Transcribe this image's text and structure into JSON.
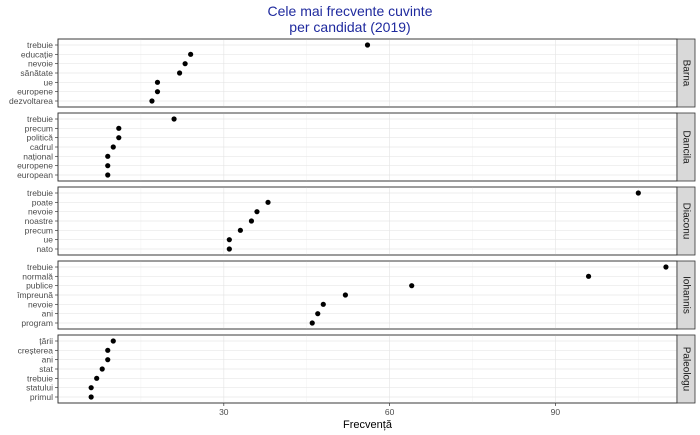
{
  "chart_data": {
    "type": "scatter",
    "title_lines": [
      "Cele mai frecvente cuvinte",
      "per candidat (2019)"
    ],
    "xlabel": "Frecvență",
    "ylabel": "",
    "xlim": [
      0,
      112
    ],
    "xticks": [
      30,
      60,
      90
    ],
    "xtick_labels": [
      "30",
      "60",
      "90"
    ],
    "grid": true,
    "facets": [
      {
        "name": "Barna",
        "words": [
          "trebuie",
          "educație",
          "nevoie",
          "sănătate",
          "ue",
          "europene",
          "dezvoltarea"
        ],
        "values": [
          56,
          24,
          23,
          22,
          18,
          18,
          17
        ]
      },
      {
        "name": "Dancila",
        "words": [
          "trebuie",
          "precum",
          "politică",
          "cadrul",
          "național",
          "europene",
          "european"
        ],
        "values": [
          21,
          11,
          11,
          10,
          9,
          9,
          9
        ]
      },
      {
        "name": "Diaconu",
        "words": [
          "trebuie",
          "poate",
          "nevoie",
          "noastre",
          "precum",
          "ue",
          "nato"
        ],
        "values": [
          105,
          38,
          36,
          35,
          33,
          31,
          31
        ]
      },
      {
        "name": "Iohannis",
        "words": [
          "trebuie",
          "normală",
          "publice",
          "împreună",
          "nevoie",
          "ani",
          "program"
        ],
        "values": [
          110,
          96,
          64,
          52,
          48,
          47,
          46
        ]
      },
      {
        "name": "Paleologu",
        "words": [
          "țării",
          "creșterea",
          "ani",
          "stat",
          "trebuie",
          "statului",
          "primul"
        ],
        "values": [
          10,
          9,
          9,
          8,
          7,
          6,
          6
        ]
      }
    ]
  }
}
